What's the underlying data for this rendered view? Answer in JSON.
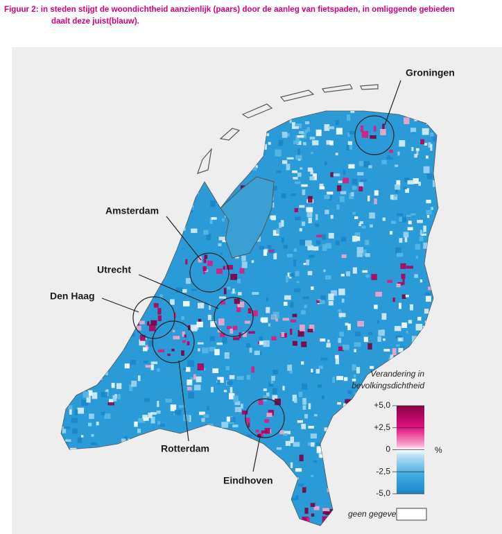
{
  "caption": {
    "line1": "Figuur 2: in steden stijgt de woondichtheid aanzienlijk (paars) door de aanleg van fietspaden, in omliggende gebieden",
    "line2": "daalt deze juist(blauw)."
  },
  "cities": [
    {
      "label": "Groningen"
    },
    {
      "label": "Amsterdam"
    },
    {
      "label": "Utrecht"
    },
    {
      "label": "Den Haag"
    },
    {
      "label": "Rotterdam"
    },
    {
      "label": "Eindhoven"
    }
  ],
  "legend": {
    "title_line1": "Verandering in",
    "title_line2": "bevolkingsdichtheid",
    "ticks": [
      {
        "value": 5,
        "label": "+5,0"
      },
      {
        "value": 2.5,
        "label": "+2,5"
      },
      {
        "value": 0,
        "label": "0"
      },
      {
        "value": -2.5,
        "label": "-2,5"
      },
      {
        "value": -5,
        "label": "-5,0"
      }
    ],
    "unit": "%",
    "no_data": "geen gegevens"
  }
}
